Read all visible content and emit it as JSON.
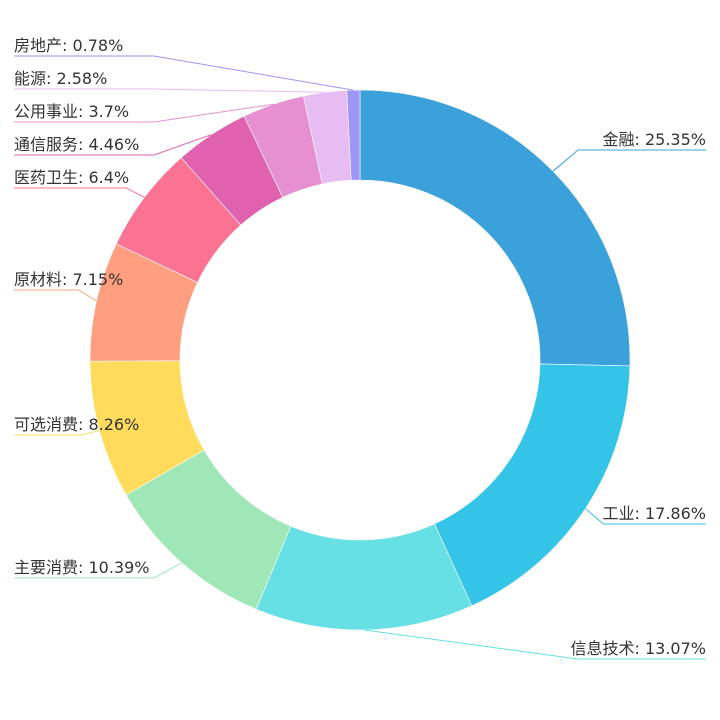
{
  "chart_data": {
    "type": "pie",
    "style": "donut",
    "slices": [
      {
        "label": "金融",
        "value": 25.35,
        "display": "金融: 25.35%",
        "color": "#3aa1db"
      },
      {
        "label": "工业",
        "value": 17.86,
        "display": "工业: 17.86%",
        "color": "#34c4e8"
      },
      {
        "label": "信息技术",
        "value": 13.07,
        "display": "信息技术: 13.07%",
        "color": "#66e0e4"
      },
      {
        "label": "主要消费",
        "value": 10.39,
        "display": "主要消费: 10.39%",
        "color": "#a0e7b8"
      },
      {
        "label": "可选消费",
        "value": 8.26,
        "display": "可选消费: 8.26%",
        "color": "#ffdb5c"
      },
      {
        "label": "原材料",
        "value": 7.15,
        "display": "原材料: 7.15%",
        "color": "#ff9f7f"
      },
      {
        "label": "医药卫生",
        "value": 6.4,
        "display": "医药卫生: 6.4%",
        "color": "#fb7293"
      },
      {
        "label": "通信服务",
        "value": 4.46,
        "display": "通信服务: 4.46%",
        "color": "#e062ae"
      },
      {
        "label": "公用事业",
        "value": 3.7,
        "display": "公用事业: 3.7%",
        "color": "#e690d1"
      },
      {
        "label": "能源",
        "value": 2.58,
        "display": "能源: 2.58%",
        "color": "#e7bcf3"
      },
      {
        "label": "房地产",
        "value": 0.78,
        "display": "房地产: 0.78%",
        "color": "#9d96f5"
      }
    ]
  }
}
